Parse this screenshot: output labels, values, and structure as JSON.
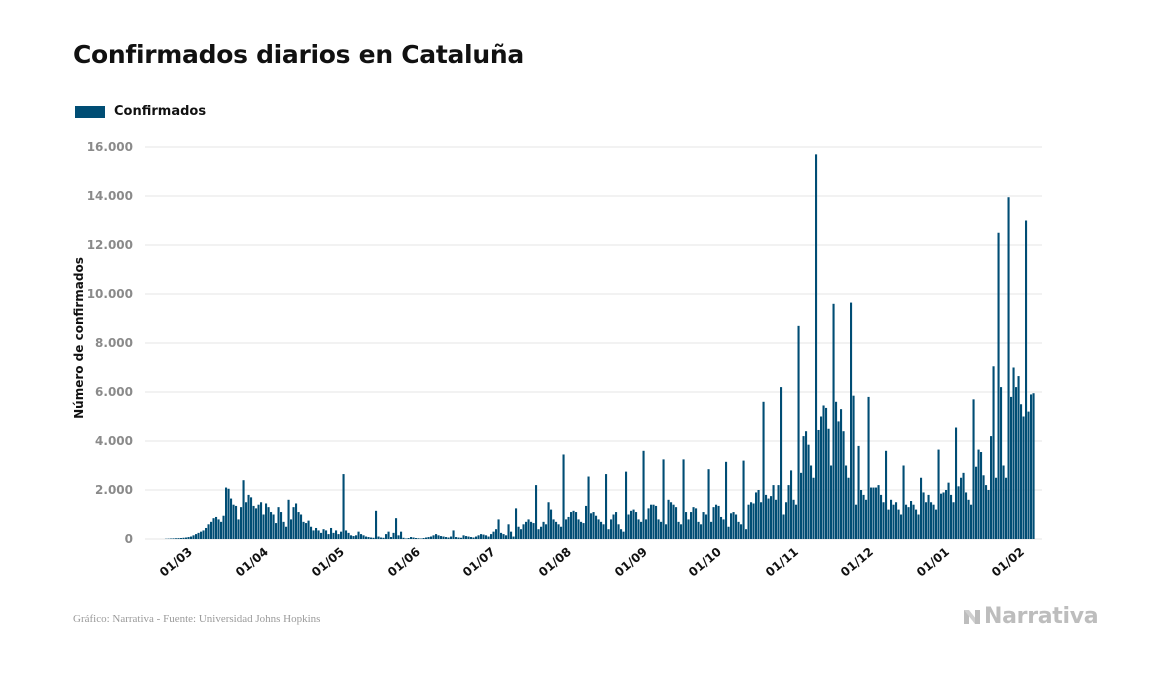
{
  "header": {
    "title": "Confirmados diarios en Cataluña"
  },
  "legend": {
    "label": "Confirmados"
  },
  "footer": {
    "source": "Gráfico: Narrativa - Fuente: Universidad Johns Hopkins",
    "logo": "Narrativa"
  },
  "colors": {
    "bar": "#004d74",
    "grid": "#e6e6e6",
    "tick": "#8a8a8a",
    "text": "#111111",
    "logo": "#bdbdbd"
  },
  "chart_data": {
    "type": "bar",
    "title": "Confirmados diarios en Cataluña",
    "xlabel": "",
    "ylabel": "Número de confirmados",
    "start_date": "2020-02-25",
    "series": [
      {
        "name": "Confirmados",
        "values": [
          0,
          0,
          0,
          0,
          0,
          0,
          10,
          15,
          20,
          25,
          30,
          35,
          40,
          50,
          60,
          80,
          100,
          150,
          200,
          250,
          300,
          350,
          450,
          600,
          700,
          850,
          900,
          800,
          700,
          950,
          2100,
          2050,
          1650,
          1400,
          1350,
          800,
          1300,
          2400,
          1500,
          1800,
          1700,
          1350,
          1250,
          1400,
          1500,
          1000,
          1450,
          1300,
          1100,
          1000,
          650,
          1300,
          1100,
          700,
          500,
          1600,
          800,
          1300,
          1450,
          1100,
          1000,
          700,
          650,
          750,
          500,
          350,
          450,
          350,
          250,
          400,
          350,
          200,
          450,
          250,
          350,
          200,
          300,
          2650,
          350,
          250,
          150,
          120,
          150,
          300,
          200,
          150,
          100,
          80,
          60,
          50,
          1150,
          100,
          60,
          50,
          200,
          300,
          80,
          250,
          850,
          150,
          300,
          50,
          20,
          40,
          80,
          60,
          40,
          30,
          20,
          40,
          60,
          80,
          100,
          150,
          200,
          150,
          120,
          100,
          80,
          60,
          100,
          350,
          80,
          60,
          50,
          150,
          120,
          100,
          80,
          60,
          100,
          150,
          200,
          180,
          150,
          100,
          200,
          300,
          400,
          800,
          250,
          200,
          150,
          600,
          300,
          100,
          1250,
          500,
          400,
          600,
          700,
          800,
          700,
          650,
          2200,
          400,
          500,
          700,
          600,
          1500,
          1200,
          800,
          700,
          600,
          500,
          3450,
          800,
          900,
          1100,
          1150,
          1100,
          800,
          700,
          650,
          1350,
          2550,
          1050,
          1100,
          950,
          800,
          700,
          600,
          2650,
          400,
          800,
          1000,
          1100,
          600,
          400,
          300,
          2750,
          1000,
          1150,
          1200,
          1100,
          800,
          700,
          3600,
          800,
          1250,
          1400,
          1400,
          1350,
          800,
          700,
          3250,
          600,
          1600,
          1500,
          1400,
          1300,
          700,
          600,
          3250,
          1100,
          800,
          1100,
          1300,
          1250,
          700,
          600,
          1100,
          1000,
          2850,
          700,
          1300,
          1400,
          1350,
          900,
          800,
          3150,
          500,
          1050,
          1100,
          1000,
          700,
          600,
          3200,
          400,
          1400,
          1500,
          1450,
          1900,
          2000,
          1500,
          5600,
          1800,
          1650,
          1750,
          2200,
          1600,
          2200,
          6200,
          1000,
          1500,
          2200,
          2800,
          1600,
          1400,
          8700,
          2700,
          4200,
          4400,
          3850,
          3000,
          2500,
          15700,
          4450,
          5000,
          5450,
          5350,
          4500,
          3000,
          9600,
          5600,
          4800,
          5300,
          4400,
          3000,
          2500,
          9650,
          5850,
          1400,
          3800,
          2000,
          1800,
          1600,
          5800,
          2100,
          2100,
          2100,
          2200,
          1800,
          1500,
          3600,
          1200,
          1600,
          1400,
          1500,
          1200,
          1000,
          3000,
          1400,
          1300,
          1550,
          1400,
          1200,
          1000,
          2500,
          1900,
          1500,
          1800,
          1500,
          1400,
          1200,
          3650,
          1850,
          1900,
          2000,
          2300,
          1800,
          1500,
          4550,
          2150,
          2500,
          2700,
          1900,
          1600,
          1400,
          5700,
          2950,
          3650,
          3550,
          2600,
          2200,
          2000,
          4200,
          7050,
          2500,
          12500,
          6200,
          3000,
          2500,
          13950,
          5800,
          7000,
          6200,
          6650,
          5500,
          5000,
          13000,
          5200,
          5900,
          5950
        ]
      }
    ],
    "x_ticks": [
      "01/03",
      "01/04",
      "01/05",
      "01/06",
      "01/07",
      "01/08",
      "01/09",
      "01/10",
      "01/11",
      "01/12",
      "01/01",
      "01/02"
    ],
    "y_ticks": [
      "0",
      "2.000",
      "4.000",
      "6.000",
      "8.000",
      "10.000",
      "12.000",
      "14.000",
      "16.000"
    ],
    "ylim": [
      0,
      16500
    ],
    "grid": true,
    "legend_position": "top-left"
  }
}
